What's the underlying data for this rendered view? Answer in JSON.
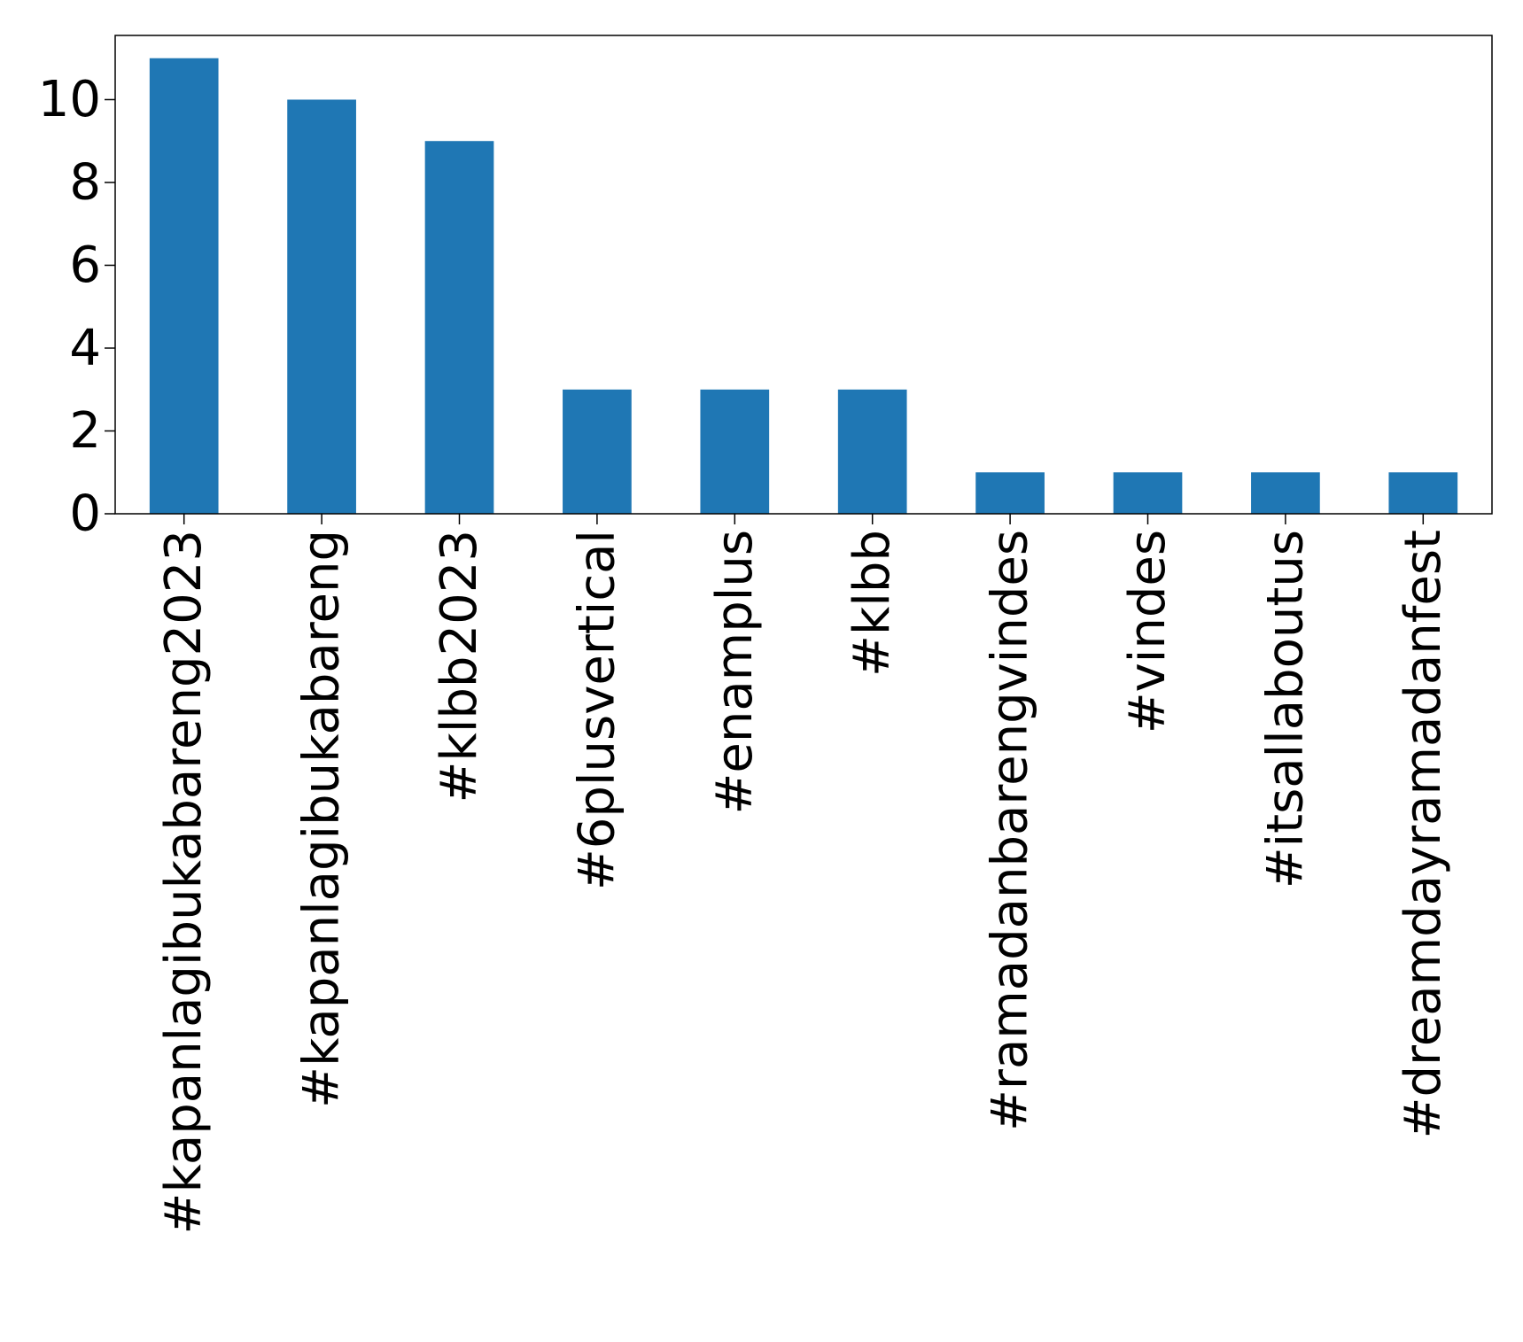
{
  "chart_data": {
    "type": "bar",
    "title": "",
    "xlabel": "",
    "ylabel": "",
    "categories": [
      "#kapanlagibukabareng2023",
      "#kapanlagibukabareng",
      "#klbb2023",
      "#6plusvertical",
      "#enamplus",
      "#klbb",
      "#ramadanbarengvindes",
      "#vindes",
      "#itsallaboutus",
      "#dreamdayramadanfest"
    ],
    "values": [
      11,
      10,
      9,
      3,
      3,
      3,
      1,
      1,
      1,
      1
    ],
    "ylim": [
      0,
      11.55
    ],
    "yticks": [
      0,
      2,
      4,
      6,
      8,
      10
    ],
    "grid": false,
    "legend": "none",
    "colors": {
      "bar": "#1f77b4",
      "axis": "#000000",
      "text": "#000000",
      "background": "#ffffff"
    }
  }
}
